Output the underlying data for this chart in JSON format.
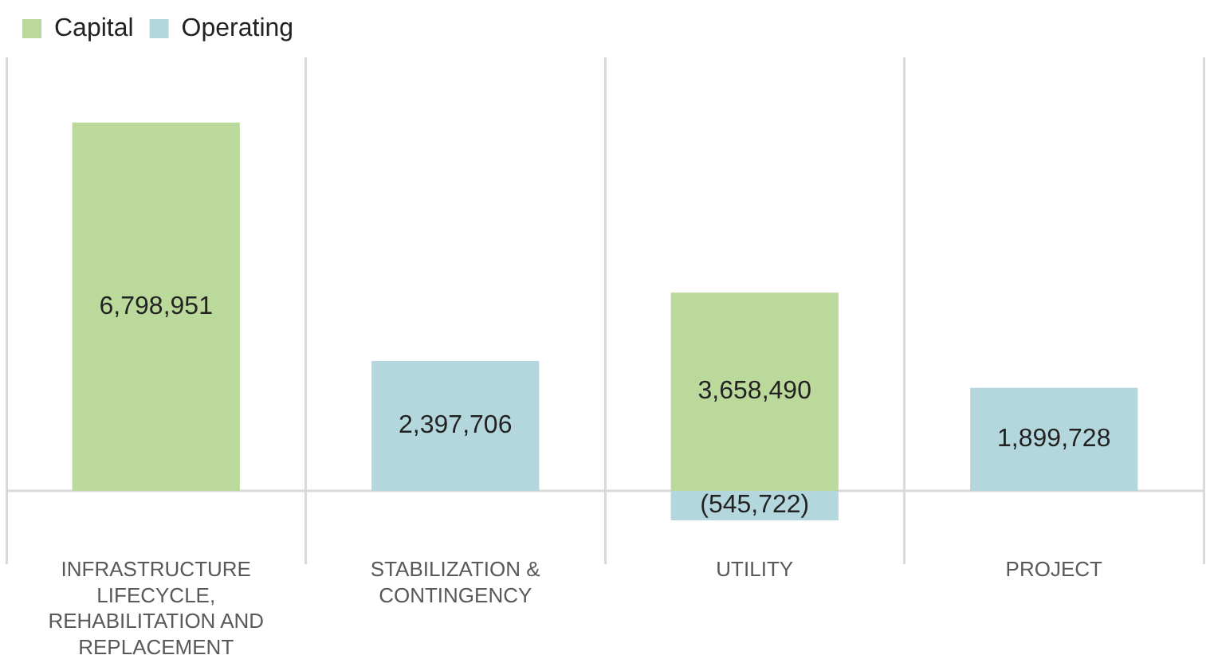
{
  "chart_data": {
    "type": "bar",
    "stacked": true,
    "categories": [
      "INFRASTRUCTURE LIFECYCLE, REHABILITATION AND REPLACEMENT",
      "STABILIZATION & CONTINGENCY",
      "UTILITY",
      "PROJECT"
    ],
    "series": [
      {
        "name": "Capital",
        "color": "#bbd99a",
        "values": [
          6798951,
          null,
          3658490,
          null
        ],
        "value_labels": [
          "6,798,951",
          null,
          "3,658,490",
          null
        ]
      },
      {
        "name": "Operating",
        "color": "#b3d7dc",
        "values": [
          null,
          2397706,
          -545722,
          1899728
        ],
        "value_labels": [
          null,
          "2,397,706",
          "(545,722)",
          "1,899,728"
        ]
      }
    ],
    "ylim": [
      -1000000,
      8000000
    ],
    "tick_labels": "x",
    "grid": "x",
    "legend": "top left"
  }
}
